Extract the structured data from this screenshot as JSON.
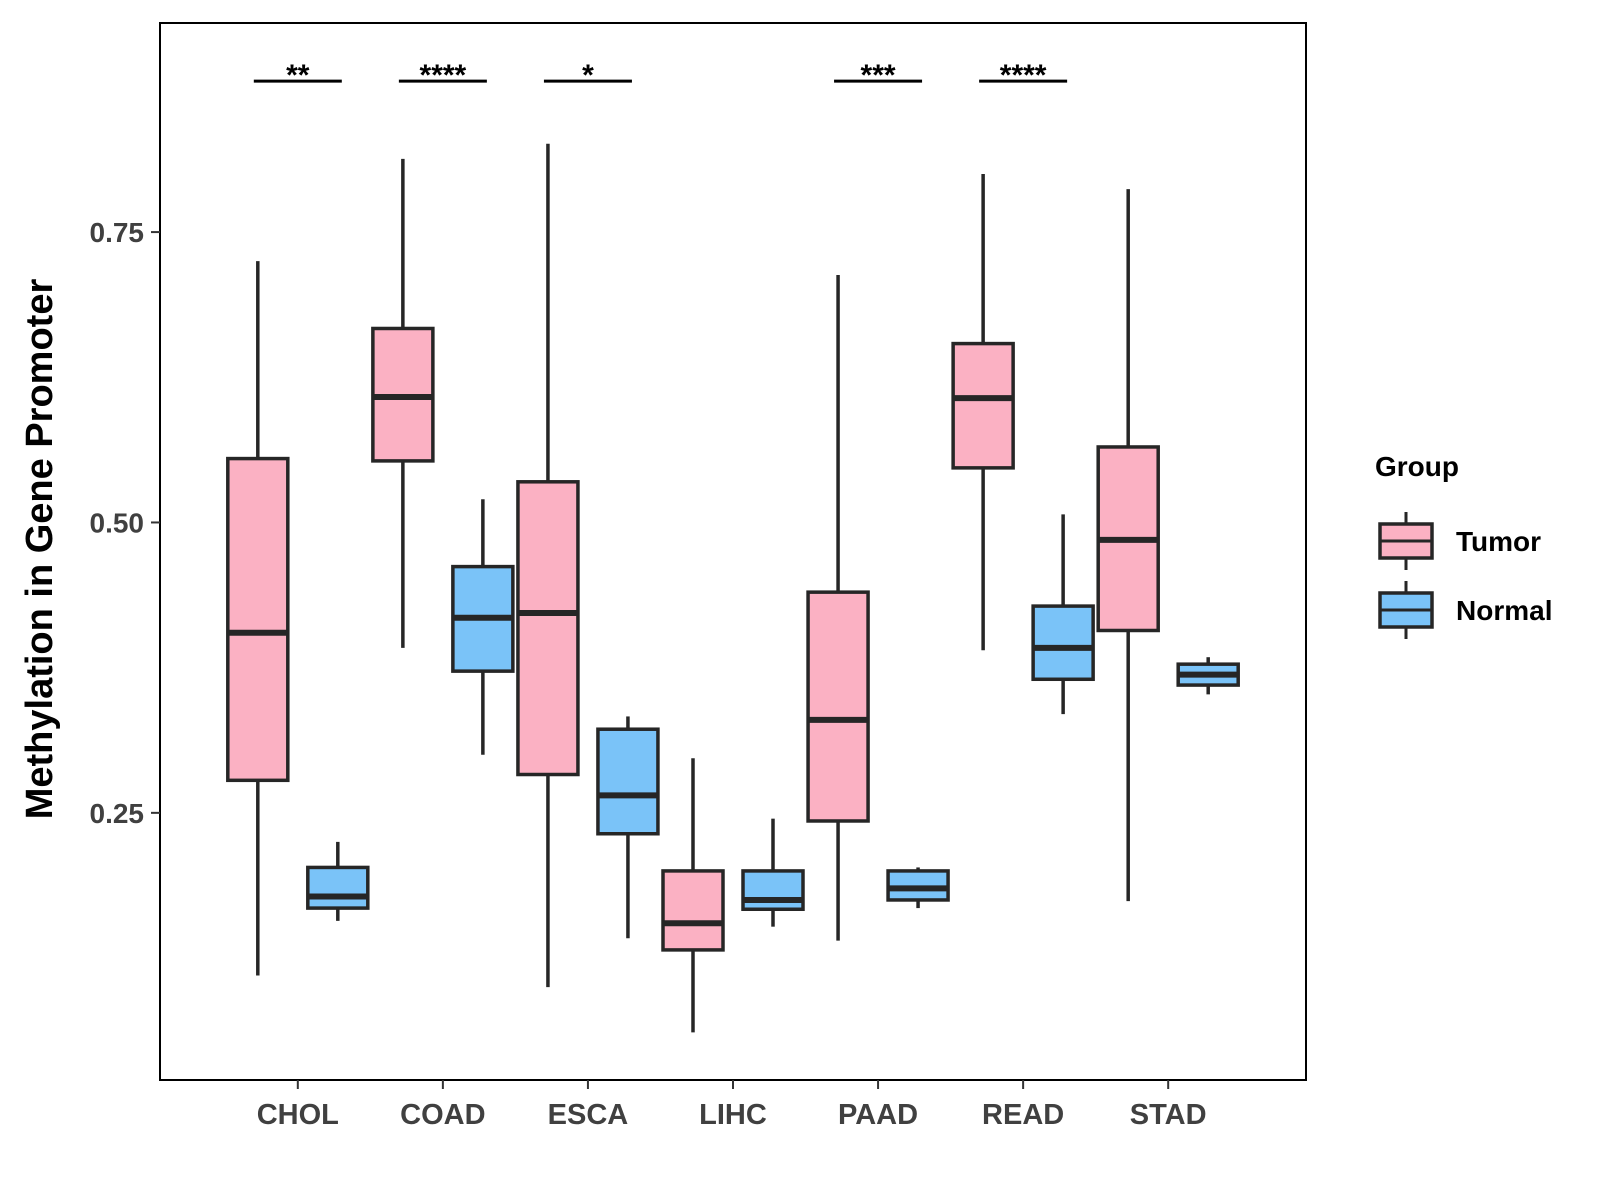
{
  "chart_data": {
    "type": "boxplot",
    "title": "",
    "xlabel": "",
    "ylabel": "Methylation in Gene Promoter",
    "ylim": [
      0.02,
      0.93
    ],
    "yticks": [
      0.25,
      0.5,
      0.75
    ],
    "ytick_labels": [
      "0.25",
      "0.50",
      "0.75"
    ],
    "grid": false,
    "legend": {
      "title": "Group",
      "position": "right",
      "entries": [
        {
          "name": "Tumor",
          "color": "#FBB1C3"
        },
        {
          "name": "Normal",
          "color": "#7AC3F8"
        }
      ]
    },
    "categories": [
      "CHOL",
      "COAD",
      "ESCA",
      "LIHC",
      "PAAD",
      "READ",
      "STAD"
    ],
    "series": [
      {
        "name": "Tumor",
        "color": "#FBB1C3",
        "boxes": [
          {
            "min": 0.11,
            "q1": 0.278,
            "median": 0.405,
            "q3": 0.555,
            "max": 0.725
          },
          {
            "min": 0.392,
            "q1": 0.553,
            "median": 0.608,
            "q3": 0.667,
            "max": 0.813
          },
          {
            "min": 0.1,
            "q1": 0.283,
            "median": 0.422,
            "q3": 0.535,
            "max": 0.826
          },
          {
            "min": 0.061,
            "q1": 0.132,
            "median": 0.155,
            "q3": 0.2,
            "max": 0.297
          },
          {
            "min": 0.14,
            "q1": 0.243,
            "median": 0.33,
            "q3": 0.44,
            "max": 0.713
          },
          {
            "min": 0.39,
            "q1": 0.547,
            "median": 0.607,
            "q3": 0.654,
            "max": 0.8
          },
          {
            "min": 0.174,
            "q1": 0.407,
            "median": 0.485,
            "q3": 0.565,
            "max": 0.787
          }
        ]
      },
      {
        "name": "Normal",
        "color": "#7AC3F8",
        "boxes": [
          {
            "min": 0.157,
            "q1": 0.168,
            "median": 0.178,
            "q3": 0.203,
            "max": 0.225
          },
          {
            "min": 0.3,
            "q1": 0.372,
            "median": 0.418,
            "q3": 0.462,
            "max": 0.52
          },
          {
            "min": 0.142,
            "q1": 0.232,
            "median": 0.265,
            "q3": 0.322,
            "max": 0.333
          },
          {
            "min": 0.152,
            "q1": 0.167,
            "median": 0.175,
            "q3": 0.2,
            "max": 0.245
          },
          {
            "min": 0.168,
            "q1": 0.175,
            "median": 0.185,
            "q3": 0.2,
            "max": 0.203
          },
          {
            "min": 0.335,
            "q1": 0.365,
            "median": 0.392,
            "q3": 0.428,
            "max": 0.507
          },
          {
            "min": 0.352,
            "q1": 0.36,
            "median": 0.369,
            "q3": 0.378,
            "max": 0.384
          }
        ]
      }
    ],
    "significance": [
      {
        "category": "CHOL",
        "label": "**"
      },
      {
        "category": "COAD",
        "label": "****"
      },
      {
        "category": "ESCA",
        "label": "*"
      },
      {
        "category": "PAAD",
        "label": "***"
      },
      {
        "category": "READ",
        "label": "****"
      }
    ],
    "significance_y": 0.88
  }
}
